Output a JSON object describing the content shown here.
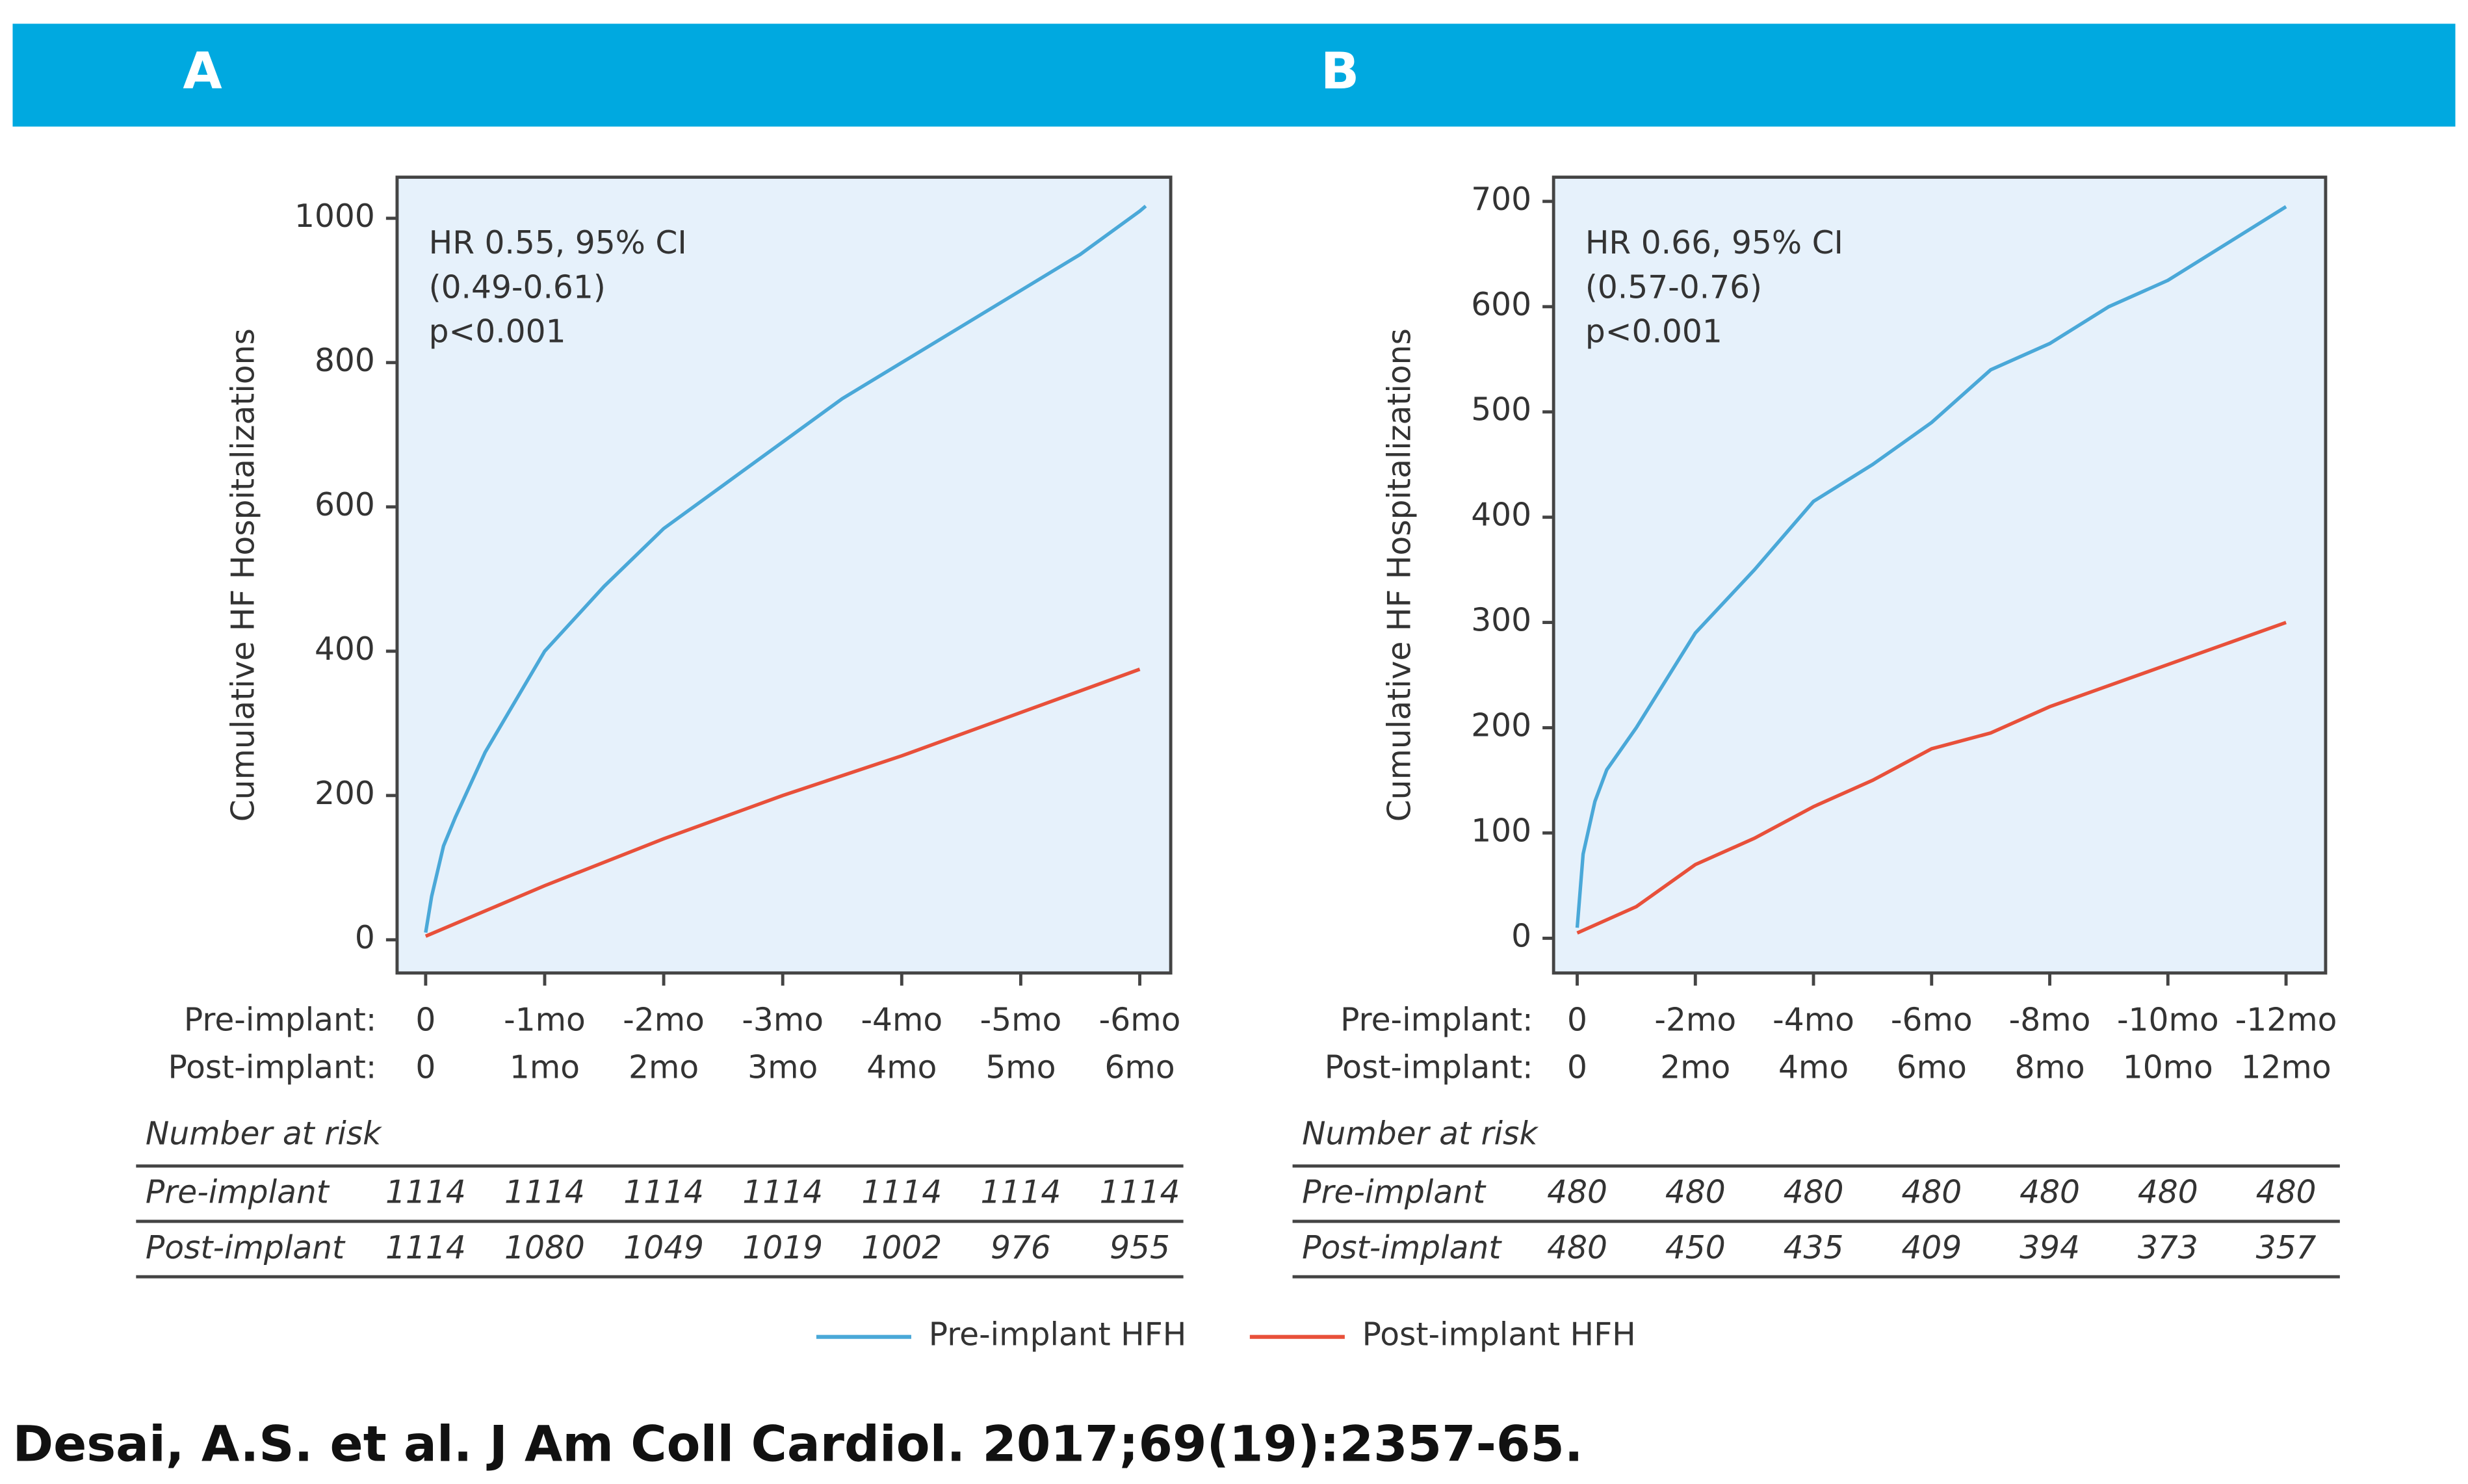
{
  "chart_data": [
    {
      "type": "line",
      "panel": "A",
      "ylabel": "Cumulative HF Hospitalizations",
      "annotation": [
        "HR 0.55, 95% CI",
        "(0.49-0.61)",
        "p<0.001"
      ],
      "xlim": [
        -0.24,
        6.26
      ],
      "ylim": [
        -46,
        1057
      ],
      "yticks": [
        0,
        200,
        400,
        600,
        800,
        1000
      ],
      "xtick_rows": [
        {
          "name": "Pre-implant:",
          "ticks": [
            {
              "value": 0,
              "label": "0"
            },
            {
              "value": 1,
              "label": "-1mo"
            },
            {
              "value": 2,
              "label": "-2mo"
            },
            {
              "value": 3,
              "label": "-3mo"
            },
            {
              "value": 4,
              "label": "-4mo"
            },
            {
              "value": 5,
              "label": "-5mo"
            },
            {
              "value": 6,
              "label": "-6mo"
            }
          ]
        },
        {
          "name": "Post-implant:",
          "ticks": [
            {
              "value": 0,
              "label": "0"
            },
            {
              "value": 1,
              "label": "1mo"
            },
            {
              "value": 2,
              "label": "2mo"
            },
            {
              "value": 3,
              "label": "3mo"
            },
            {
              "value": 4,
              "label": "4mo"
            },
            {
              "value": 5,
              "label": "5mo"
            },
            {
              "value": 6,
              "label": "6mo"
            }
          ]
        }
      ],
      "series": [
        {
          "name": "Pre-implant HFH",
          "color": "#4aa8d8",
          "x": [
            0,
            0.05,
            0.15,
            0.25,
            0.5,
            1,
            1.5,
            2,
            2.5,
            3,
            3.5,
            4,
            4.5,
            5,
            5.5,
            6,
            6.05
          ],
          "values": [
            10,
            60,
            130,
            170,
            260,
            400,
            490,
            570,
            630,
            690,
            750,
            800,
            850,
            900,
            950,
            1010,
            1017
          ]
        },
        {
          "name": "Post-implant HFH",
          "color": "#e8503a",
          "x": [
            0,
            1,
            2,
            3,
            4,
            5,
            6
          ],
          "values": [
            5,
            75,
            140,
            200,
            255,
            315,
            375
          ]
        }
      ],
      "risk_table": {
        "title": "Number at risk",
        "rows": [
          {
            "name": "Pre-implant",
            "values": [
              1114,
              1114,
              1114,
              1114,
              1114,
              1114,
              1114
            ]
          },
          {
            "name": "Post-implant",
            "values": [
              1114,
              1080,
              1049,
              1019,
              1002,
              976,
              955
            ]
          }
        ]
      }
    },
    {
      "type": "line",
      "panel": "B",
      "ylabel": "Cumulative HF Hospitalizations",
      "annotation": [
        "HR 0.66, 95% CI",
        "(0.57-0.76)",
        "p<0.001"
      ],
      "xlim": [
        -0.4,
        12.67
      ],
      "ylim": [
        -33,
        723
      ],
      "yticks": [
        0,
        100,
        200,
        300,
        400,
        500,
        600,
        700
      ],
      "xtick_rows": [
        {
          "name": "Pre-implant:",
          "ticks": [
            {
              "value": 0,
              "label": "0"
            },
            {
              "value": 2,
              "label": "-2mo"
            },
            {
              "value": 4,
              "label": "-4mo"
            },
            {
              "value": 6,
              "label": "-6mo"
            },
            {
              "value": 8,
              "label": "-8mo"
            },
            {
              "value": 10,
              "label": "-10mo"
            },
            {
              "value": 12,
              "label": "-12mo"
            }
          ]
        },
        {
          "name": "Post-implant:",
          "ticks": [
            {
              "value": 0,
              "label": "0"
            },
            {
              "value": 2,
              "label": "2mo"
            },
            {
              "value": 4,
              "label": "4mo"
            },
            {
              "value": 6,
              "label": "6mo"
            },
            {
              "value": 8,
              "label": "8mo"
            },
            {
              "value": 10,
              "label": "10mo"
            },
            {
              "value": 12,
              "label": "12mo"
            }
          ]
        }
      ],
      "series": [
        {
          "color": "#4aa8d8",
          "x": [
            0,
            0.1,
            0.3,
            0.5,
            1,
            2,
            3,
            4,
            5,
            6,
            7,
            8,
            9,
            10,
            11,
            12
          ],
          "values": [
            10,
            80,
            130,
            160,
            200,
            290,
            350,
            415,
            450,
            490,
            540,
            565,
            600,
            625,
            660,
            695
          ]
        },
        {
          "color": "#e8503a",
          "x": [
            0,
            1,
            2,
            3,
            4,
            5,
            6,
            7,
            8,
            9,
            10,
            11,
            12
          ],
          "values": [
            5,
            30,
            70,
            95,
            125,
            150,
            180,
            195,
            220,
            240,
            260,
            280,
            300
          ]
        }
      ],
      "risk_table": {
        "title": "Number at risk",
        "rows": [
          {
            "name": "Pre-implant",
            "values": [
              480,
              480,
              480,
              480,
              480,
              480,
              480
            ]
          },
          {
            "name": "Post-implant",
            "values": [
              480,
              450,
              435,
              409,
              394,
              373,
              357
            ]
          }
        ]
      }
    }
  ],
  "citation": "Desai, A.S. et al. J Am Coll Cardiol. 2017;69(19):2357-65."
}
